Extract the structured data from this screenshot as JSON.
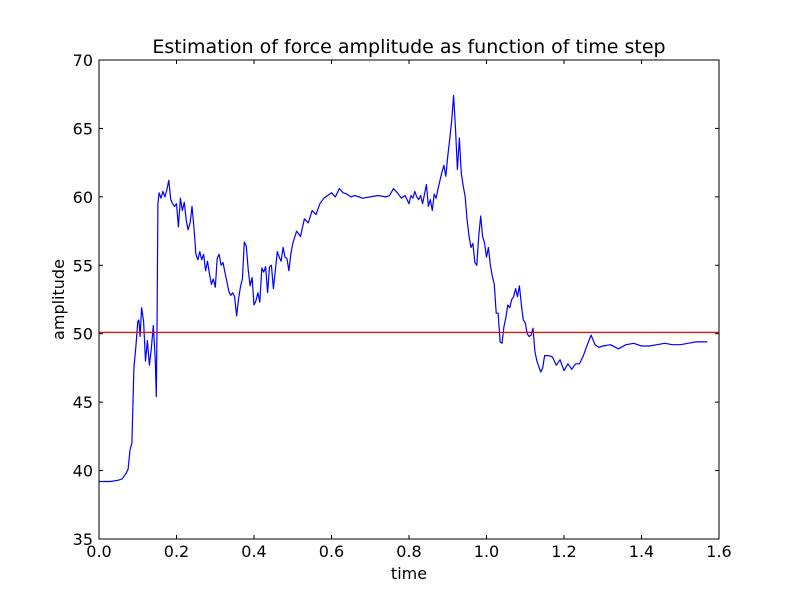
{
  "chart_data": {
    "type": "line",
    "title": "Estimation of force amplitude as function of time step",
    "xlabel": "time",
    "ylabel": "amplitude",
    "xlim": [
      0.0,
      1.6
    ],
    "ylim": [
      35,
      70
    ],
    "xticks": [
      "0.0",
      "0.2",
      "0.4",
      "0.6",
      "0.8",
      "1.0",
      "1.2",
      "1.4",
      "1.6"
    ],
    "yticks": [
      "35",
      "40",
      "45",
      "50",
      "55",
      "60",
      "65",
      "70"
    ],
    "grid": false,
    "reference_line": {
      "y": 50.1,
      "color": "#ff0000"
    },
    "series": [
      {
        "color": "#0000ff",
        "x": [
          0.0,
          0.03,
          0.05,
          0.06,
          0.07,
          0.075,
          0.08,
          0.085,
          0.09,
          0.095,
          0.1,
          0.103,
          0.106,
          0.11,
          0.115,
          0.12,
          0.125,
          0.13,
          0.135,
          0.14,
          0.145,
          0.148,
          0.15,
          0.152,
          0.155,
          0.16,
          0.165,
          0.17,
          0.175,
          0.18,
          0.185,
          0.19,
          0.195,
          0.2,
          0.205,
          0.21,
          0.215,
          0.22,
          0.225,
          0.23,
          0.235,
          0.24,
          0.245,
          0.25,
          0.255,
          0.26,
          0.265,
          0.27,
          0.275,
          0.28,
          0.285,
          0.29,
          0.295,
          0.3,
          0.305,
          0.31,
          0.315,
          0.32,
          0.325,
          0.33,
          0.335,
          0.34,
          0.345,
          0.35,
          0.355,
          0.36,
          0.365,
          0.37,
          0.375,
          0.38,
          0.385,
          0.39,
          0.395,
          0.4,
          0.405,
          0.41,
          0.415,
          0.42,
          0.425,
          0.43,
          0.435,
          0.44,
          0.445,
          0.45,
          0.455,
          0.46,
          0.465,
          0.47,
          0.475,
          0.48,
          0.485,
          0.49,
          0.495,
          0.5,
          0.51,
          0.52,
          0.53,
          0.54,
          0.55,
          0.56,
          0.57,
          0.58,
          0.59,
          0.6,
          0.61,
          0.62,
          0.63,
          0.64,
          0.65,
          0.66,
          0.68,
          0.7,
          0.72,
          0.74,
          0.75,
          0.76,
          0.77,
          0.78,
          0.79,
          0.8,
          0.805,
          0.81,
          0.815,
          0.82,
          0.825,
          0.83,
          0.835,
          0.84,
          0.845,
          0.85,
          0.855,
          0.86,
          0.865,
          0.87,
          0.875,
          0.88,
          0.885,
          0.89,
          0.895,
          0.9,
          0.905,
          0.91,
          0.915,
          0.92,
          0.925,
          0.93,
          0.935,
          0.94,
          0.945,
          0.95,
          0.955,
          0.96,
          0.965,
          0.97,
          0.975,
          0.98,
          0.985,
          0.99,
          0.995,
          1.0,
          1.005,
          1.01,
          1.015,
          1.02,
          1.025,
          1.03,
          1.035,
          1.04,
          1.045,
          1.05,
          1.055,
          1.06,
          1.065,
          1.07,
          1.075,
          1.08,
          1.085,
          1.09,
          1.095,
          1.1,
          1.105,
          1.11,
          1.115,
          1.12,
          1.125,
          1.13,
          1.135,
          1.14,
          1.145,
          1.15,
          1.16,
          1.17,
          1.18,
          1.19,
          1.2,
          1.21,
          1.22,
          1.23,
          1.24,
          1.25,
          1.26,
          1.27,
          1.28,
          1.29,
          1.3,
          1.32,
          1.34,
          1.36,
          1.38,
          1.4,
          1.42,
          1.44,
          1.46,
          1.48,
          1.5,
          1.52,
          1.54,
          1.56,
          1.57
        ],
        "y": [
          39.2,
          39.2,
          39.3,
          39.4,
          39.8,
          40.1,
          41.5,
          42.0,
          47.5,
          49.0,
          50.9,
          51.0,
          49.8,
          51.9,
          50.9,
          48.0,
          49.5,
          47.7,
          48.9,
          50.6,
          48.2,
          45.4,
          51.2,
          59.5,
          60.3,
          59.9,
          60.4,
          60.0,
          60.5,
          61.2,
          59.8,
          59.5,
          59.3,
          59.5,
          57.8,
          59.9,
          59.0,
          59.6,
          58.3,
          57.6,
          58.1,
          59.3,
          57.8,
          55.8,
          55.4,
          56.0,
          55.4,
          55.8,
          54.6,
          55.3,
          54.4,
          53.6,
          54.0,
          53.4,
          55.5,
          55.8,
          55.0,
          55.2,
          54.5,
          53.8,
          53.1,
          52.8,
          53.0,
          52.7,
          51.3,
          52.5,
          53.4,
          54.0,
          56.7,
          56.4,
          54.7,
          53.5,
          54.1,
          52.1,
          52.4,
          53.0,
          52.3,
          54.8,
          54.5,
          54.9,
          53.0,
          54.9,
          55.0,
          53.3,
          54.6,
          56.0,
          55.6,
          55.3,
          56.3,
          55.6,
          55.5,
          54.6,
          55.8,
          56.6,
          57.5,
          57.1,
          58.4,
          58.1,
          59.0,
          58.7,
          59.5,
          59.9,
          60.1,
          60.3,
          60.0,
          60.6,
          60.3,
          60.2,
          60.0,
          60.1,
          59.9,
          60.0,
          60.1,
          60.0,
          60.1,
          60.6,
          60.3,
          59.9,
          60.1,
          59.5,
          60.1,
          59.9,
          60.4,
          60.0,
          59.8,
          60.1,
          59.5,
          60.2,
          60.9,
          59.3,
          59.8,
          59.0,
          60.2,
          59.9,
          60.6,
          61.2,
          61.8,
          62.3,
          61.5,
          63.0,
          64.2,
          65.5,
          67.4,
          65.0,
          62.0,
          64.3,
          61.7,
          60.8,
          60.0,
          58.3,
          57.1,
          56.3,
          56.6,
          55.2,
          55.0,
          57.1,
          58.6,
          57.1,
          56.6,
          55.6,
          56.3,
          55.0,
          54.2,
          53.6,
          51.5,
          51.5,
          49.4,
          49.3,
          50.5,
          51.2,
          52.1,
          51.9,
          52.5,
          52.7,
          53.3,
          52.7,
          53.5,
          52.1,
          51.0,
          50.8,
          50.0,
          49.8,
          49.9,
          50.4,
          48.7,
          48.0,
          47.6,
          47.2,
          47.5,
          48.4,
          48.4,
          48.3,
          47.7,
          48.1,
          47.3,
          47.8,
          47.4,
          47.8,
          47.8,
          48.4,
          49.2,
          49.9,
          49.2,
          49.0,
          49.1,
          49.2,
          48.9,
          49.2,
          49.3,
          49.1,
          49.1,
          49.2,
          49.3,
          49.2,
          49.2,
          49.3,
          49.4,
          49.4,
          49.4
        ]
      }
    ]
  }
}
